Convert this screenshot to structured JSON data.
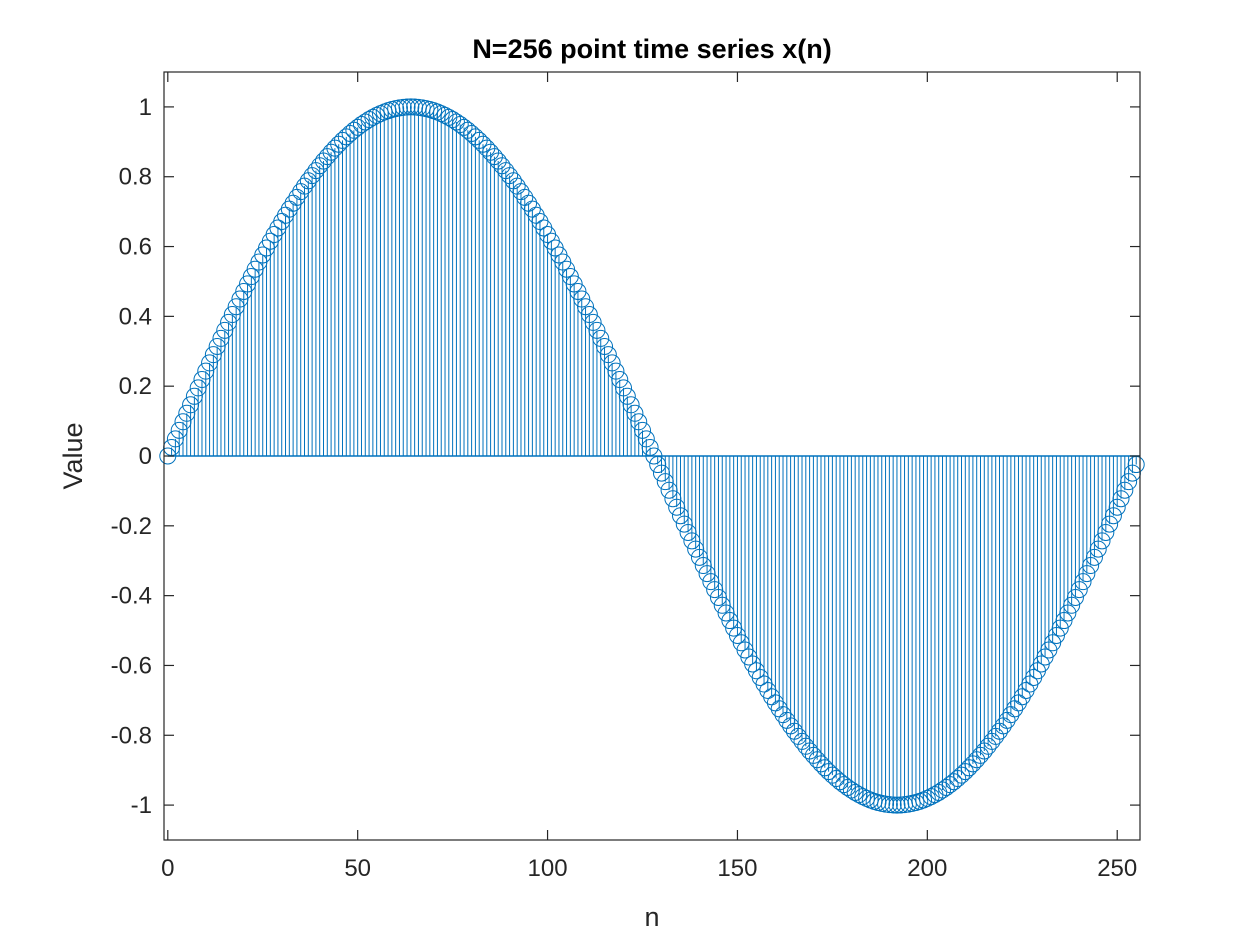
{
  "chart_data": {
    "type": "stem",
    "title": "N=256 point time series x(n)",
    "xlabel": "n",
    "ylabel": "Value",
    "xlim": [
      -1,
      256
    ],
    "ylim": [
      -1.1,
      1.1
    ],
    "xticks": [
      0,
      50,
      100,
      150,
      200,
      250
    ],
    "yticks": [
      -1,
      -0.8,
      -0.6,
      -0.4,
      -0.2,
      0,
      0.2,
      0.4,
      0.6,
      0.8,
      1
    ],
    "xtick_labels": [
      "0",
      "50",
      "100",
      "150",
      "200",
      "250"
    ],
    "ytick_labels": [
      "-1",
      "-0.8",
      "-0.6",
      "-0.4",
      "-0.2",
      "0",
      "0.2",
      "0.4",
      "0.6",
      "0.8",
      "1"
    ],
    "grid": false,
    "marker": "circle-open",
    "series": [
      {
        "color": "#0072BD",
        "x": [
          0,
          1,
          2,
          3,
          4,
          5,
          6,
          7,
          8,
          9,
          10,
          11,
          12,
          13,
          14,
          15,
          16,
          17,
          18,
          19,
          20,
          21,
          22,
          23,
          24,
          25,
          26,
          27,
          28,
          29,
          30,
          31,
          32,
          33,
          34,
          35,
          36,
          37,
          38,
          39,
          40,
          41,
          42,
          43,
          44,
          45,
          46,
          47,
          48,
          49,
          50,
          51,
          52,
          53,
          54,
          55,
          56,
          57,
          58,
          59,
          60,
          61,
          62,
          63,
          64,
          65,
          66,
          67,
          68,
          69,
          70,
          71,
          72,
          73,
          74,
          75,
          76,
          77,
          78,
          79,
          80,
          81,
          82,
          83,
          84,
          85,
          86,
          87,
          88,
          89,
          90,
          91,
          92,
          93,
          94,
          95,
          96,
          97,
          98,
          99,
          100,
          101,
          102,
          103,
          104,
          105,
          106,
          107,
          108,
          109,
          110,
          111,
          112,
          113,
          114,
          115,
          116,
          117,
          118,
          119,
          120,
          121,
          122,
          123,
          124,
          125,
          126,
          127,
          128,
          129,
          130,
          131,
          132,
          133,
          134,
          135,
          136,
          137,
          138,
          139,
          140,
          141,
          142,
          143,
          144,
          145,
          146,
          147,
          148,
          149,
          150,
          151,
          152,
          153,
          154,
          155,
          156,
          157,
          158,
          159,
          160,
          161,
          162,
          163,
          164,
          165,
          166,
          167,
          168,
          169,
          170,
          171,
          172,
          173,
          174,
          175,
          176,
          177,
          178,
          179,
          180,
          181,
          182,
          183,
          184,
          185,
          186,
          187,
          188,
          189,
          190,
          191,
          192,
          193,
          194,
          195,
          196,
          197,
          198,
          199,
          200,
          201,
          202,
          203,
          204,
          205,
          206,
          207,
          208,
          209,
          210,
          211,
          212,
          213,
          214,
          215,
          216,
          217,
          218,
          219,
          220,
          221,
          222,
          223,
          224,
          225,
          226,
          227,
          228,
          229,
          230,
          231,
          232,
          233,
          234,
          235,
          236,
          237,
          238,
          239,
          240,
          241,
          242,
          243,
          244,
          245,
          246,
          247,
          248,
          249,
          250,
          251,
          252,
          253,
          254,
          255
        ],
        "y": [
          0.0,
          0.0245,
          0.049,
          0.0735,
          0.098,
          0.1224,
          0.1467,
          0.171,
          0.1951,
          0.2191,
          0.243,
          0.2667,
          0.2903,
          0.3137,
          0.3369,
          0.3599,
          0.3827,
          0.4052,
          0.4276,
          0.4496,
          0.4714,
          0.4929,
          0.5141,
          0.535,
          0.5556,
          0.5758,
          0.5957,
          0.6152,
          0.6344,
          0.6532,
          0.6716,
          0.6895,
          0.7071,
          0.7242,
          0.741,
          0.7572,
          0.773,
          0.7883,
          0.8032,
          0.8176,
          0.8315,
          0.8449,
          0.8577,
          0.8701,
          0.8819,
          0.8932,
          0.904,
          0.9142,
          0.9239,
          0.933,
          0.9415,
          0.9495,
          0.9569,
          0.9638,
          0.97,
          0.9757,
          0.9808,
          0.9853,
          0.9892,
          0.9925,
          0.9952,
          0.9973,
          0.9988,
          0.9997,
          1.0,
          0.9997,
          0.9988,
          0.9973,
          0.9952,
          0.9925,
          0.9892,
          0.9853,
          0.9808,
          0.9757,
          0.97,
          0.9638,
          0.9569,
          0.9495,
          0.9415,
          0.933,
          0.9239,
          0.9142,
          0.904,
          0.8932,
          0.8819,
          0.8701,
          0.8577,
          0.8449,
          0.8315,
          0.8176,
          0.8032,
          0.7883,
          0.773,
          0.7572,
          0.741,
          0.7242,
          0.7071,
          0.6895,
          0.6716,
          0.6532,
          0.6344,
          0.6152,
          0.5957,
          0.5758,
          0.5556,
          0.535,
          0.5141,
          0.4929,
          0.4714,
          0.4496,
          0.4276,
          0.4052,
          0.3827,
          0.3599,
          0.3369,
          0.3137,
          0.2903,
          0.2667,
          0.243,
          0.2191,
          0.1951,
          0.171,
          0.1467,
          0.1224,
          0.098,
          0.0735,
          0.049,
          0.0245,
          0.0,
          -0.0245,
          -0.049,
          -0.0735,
          -0.098,
          -0.1224,
          -0.1467,
          -0.171,
          -0.1951,
          -0.2191,
          -0.243,
          -0.2667,
          -0.2903,
          -0.3137,
          -0.3369,
          -0.3599,
          -0.3827,
          -0.4052,
          -0.4276,
          -0.4496,
          -0.4714,
          -0.4929,
          -0.5141,
          -0.535,
          -0.5556,
          -0.5758,
          -0.5957,
          -0.6152,
          -0.6344,
          -0.6532,
          -0.6716,
          -0.6895,
          -0.7071,
          -0.7242,
          -0.741,
          -0.7572,
          -0.773,
          -0.7883,
          -0.8032,
          -0.8176,
          -0.8315,
          -0.8449,
          -0.8577,
          -0.8701,
          -0.8819,
          -0.8932,
          -0.904,
          -0.9142,
          -0.9239,
          -0.933,
          -0.9415,
          -0.9495,
          -0.9569,
          -0.9638,
          -0.97,
          -0.9757,
          -0.9808,
          -0.9853,
          -0.9892,
          -0.9925,
          -0.9952,
          -0.9973,
          -0.9988,
          -0.9997,
          -1.0,
          -0.9997,
          -0.9988,
          -0.9973,
          -0.9952,
          -0.9925,
          -0.9892,
          -0.9853,
          -0.9808,
          -0.9757,
          -0.97,
          -0.9638,
          -0.9569,
          -0.9495,
          -0.9415,
          -0.933,
          -0.9239,
          -0.9142,
          -0.904,
          -0.8932,
          -0.8819,
          -0.8701,
          -0.8577,
          -0.8449,
          -0.8315,
          -0.8176,
          -0.8032,
          -0.7883,
          -0.773,
          -0.7572,
          -0.741,
          -0.7242,
          -0.7071,
          -0.6895,
          -0.6716,
          -0.6532,
          -0.6344,
          -0.6152,
          -0.5957,
          -0.5758,
          -0.5556,
          -0.535,
          -0.5141,
          -0.4929,
          -0.4714,
          -0.4496,
          -0.4276,
          -0.4052,
          -0.3827,
          -0.3599,
          -0.3369,
          -0.3137,
          -0.2903,
          -0.2667,
          -0.243,
          -0.2191,
          -0.1951,
          -0.171,
          -0.1467,
          -0.1224,
          -0.098,
          -0.0735,
          -0.049,
          -0.0245
        ]
      }
    ]
  }
}
